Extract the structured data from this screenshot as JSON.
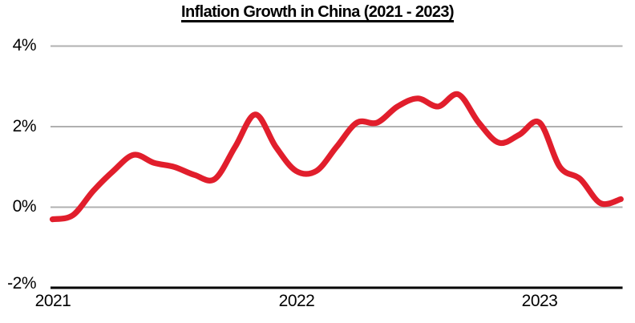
{
  "chart_data": {
    "type": "line",
    "title": "Inflation Growth in China (2021 - 2023)",
    "xlabel": "",
    "ylabel": "",
    "x": [
      "Jan 2021",
      "Feb 2021",
      "Mar 2021",
      "Apr 2021",
      "May 2021",
      "Jun 2021",
      "Jul 2021",
      "Aug 2021",
      "Sep 2021",
      "Oct 2021",
      "Nov 2021",
      "Dec 2021",
      "Jan 2022",
      "Feb 2022",
      "Mar 2022",
      "Apr 2022",
      "May 2022",
      "Jun 2022",
      "Jul 2022",
      "Aug 2022",
      "Sep 2022",
      "Oct 2022",
      "Nov 2022",
      "Dec 2022",
      "Jan 2023",
      "Feb 2023",
      "Mar 2023",
      "Apr 2023",
      "May 2023"
    ],
    "values": [
      -0.3,
      -0.2,
      0.4,
      0.9,
      1.3,
      1.1,
      1.0,
      0.8,
      0.7,
      1.5,
      2.3,
      1.5,
      0.9,
      0.9,
      1.5,
      2.1,
      2.1,
      2.5,
      2.7,
      2.5,
      2.8,
      2.1,
      1.6,
      1.8,
      2.1,
      1.0,
      0.7,
      0.1,
      0.2
    ],
    "unit": "%",
    "ylim": [
      -2,
      4
    ],
    "y_ticks": [
      "4%",
      "2%",
      "0%",
      "-2%"
    ],
    "y_tick_values": [
      4,
      2,
      0,
      -2
    ],
    "x_ticks": [
      "2021",
      "2022",
      "2023"
    ],
    "grid": "horizontal",
    "legend": "none",
    "smoothing": true
  },
  "colors": {
    "line": "#e11e2c",
    "gridline": "#b0b0b0",
    "axis": "#000000",
    "text": "#000000",
    "background": "#ffffff"
  }
}
